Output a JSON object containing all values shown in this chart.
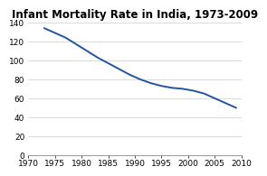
{
  "title": "Infant Mortality Rate in India, 1973-2009",
  "x_values": [
    1973,
    1975,
    1977,
    1979,
    1981,
    1983,
    1985,
    1987,
    1989,
    1991,
    1993,
    1995,
    1997,
    1999,
    2001,
    2003,
    2005,
    2007,
    2009
  ],
  "y_values": [
    134,
    129,
    124,
    117,
    110,
    103,
    97,
    91,
    85,
    80,
    76,
    73,
    71,
    70,
    68,
    65,
    60,
    55,
    50
  ],
  "line_color": "#2255a0",
  "background_color": "#ffffff",
  "xlim": [
    1970,
    2010
  ],
  "ylim": [
    0,
    140
  ],
  "xtick_values": [
    1970,
    1975,
    1980,
    1985,
    1990,
    1995,
    2000,
    2005,
    2010
  ],
  "ytick_values": [
    0,
    20,
    40,
    60,
    80,
    100,
    120,
    140
  ],
  "title_fontsize": 8.5,
  "tick_fontsize": 6.5,
  "line_width": 1.4,
  "grid_color": "#cccccc"
}
